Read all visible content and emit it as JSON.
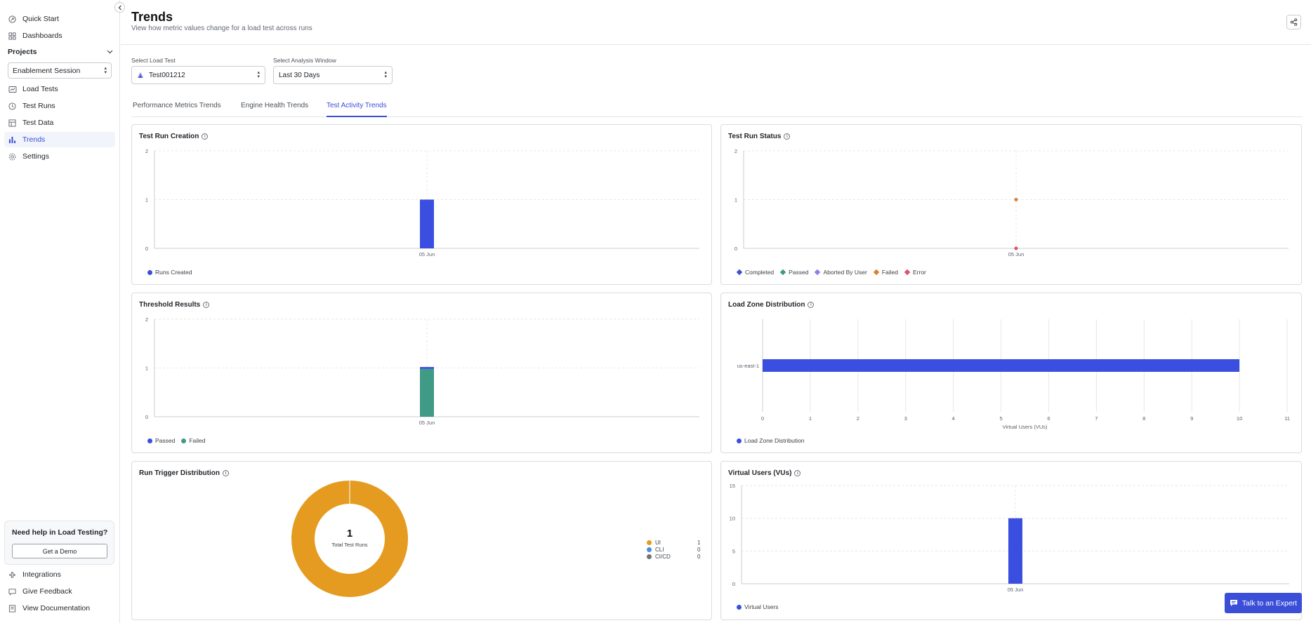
{
  "sidebar": {
    "top_items": [
      {
        "label": "Quick Start",
        "icon": "rocket-icon"
      },
      {
        "label": "Dashboards",
        "icon": "dashboard-icon"
      }
    ],
    "projects_label": "Projects",
    "project_select": "Enablement Session",
    "project_items": [
      {
        "label": "Load Tests",
        "icon": "load-tests-icon"
      },
      {
        "label": "Test Runs",
        "icon": "test-runs-icon"
      },
      {
        "label": "Test Data",
        "icon": "test-data-icon"
      },
      {
        "label": "Trends",
        "icon": "trends-icon",
        "active": true
      },
      {
        "label": "Settings",
        "icon": "gear-icon"
      }
    ],
    "help": {
      "title": "Need help in Load Testing?",
      "button": "Get a Demo"
    },
    "bottom_items": [
      {
        "label": "Integrations",
        "icon": "integrations-icon"
      },
      {
        "label": "Give Feedback",
        "icon": "feedback-icon"
      },
      {
        "label": "View Documentation",
        "icon": "documentation-icon"
      }
    ]
  },
  "header": {
    "title": "Trends",
    "subtitle": "View how metric values change for a load test across runs"
  },
  "filters": {
    "load_test_label": "Select Load Test",
    "load_test_value": "Test001212",
    "window_label": "Select Analysis Window",
    "window_value": "Last 30 Days"
  },
  "tabs": [
    {
      "label": "Performance Metrics Trends"
    },
    {
      "label": "Engine Health Trends"
    },
    {
      "label": "Test Activity Trends",
      "active": true
    }
  ],
  "colors": {
    "accent": "#3b4ed8",
    "bar_blue": "#3a4fe0",
    "passed_teal": "#3f9a86",
    "failed_orange": "#d9822b",
    "error_red": "#d9536b",
    "aborted_purple": "#8a80e6",
    "ui_gold": "#e49b20",
    "cli_blue": "#4a8fe0",
    "cicd_gray": "#6e737a"
  },
  "expert_button": "Talk to an Expert",
  "chart_data": [
    {
      "id": "test-run-creation",
      "type": "bar",
      "title": "Test Run Creation",
      "categories": [
        "05 Jun"
      ],
      "series": [
        {
          "name": "Runs Created",
          "values": [
            1
          ]
        }
      ],
      "yticks": [
        "0",
        "1",
        "2"
      ],
      "ylim": [
        0,
        2
      ],
      "legend": [
        "Runs Created"
      ]
    },
    {
      "id": "test-run-status",
      "type": "scatter",
      "title": "Test Run Status",
      "categories": [
        "05 Jun"
      ],
      "series": [
        {
          "name": "Completed",
          "values": [
            0
          ]
        },
        {
          "name": "Passed",
          "values": [
            0
          ]
        },
        {
          "name": "Aborted By User",
          "values": [
            0
          ]
        },
        {
          "name": "Failed",
          "values": [
            1
          ]
        },
        {
          "name": "Error",
          "values": [
            0
          ]
        }
      ],
      "yticks": [
        "0",
        "1",
        "2"
      ],
      "ylim": [
        0,
        2
      ],
      "legend": [
        "Completed",
        "Passed",
        "Aborted By User",
        "Failed",
        "Error"
      ]
    },
    {
      "id": "threshold-results",
      "type": "bar",
      "title": "Threshold Results",
      "categories": [
        "05 Jun"
      ],
      "series": [
        {
          "name": "Passed",
          "values": [
            0.04
          ]
        },
        {
          "name": "Failed",
          "values": [
            0.98
          ]
        }
      ],
      "yticks": [
        "0",
        "1",
        "2"
      ],
      "ylim": [
        0,
        2
      ],
      "legend": [
        "Passed",
        "Failed"
      ]
    },
    {
      "id": "load-zone-distribution",
      "type": "bar",
      "orientation": "horizontal",
      "title": "Load Zone Distribution",
      "categories": [
        "us-east-1"
      ],
      "series": [
        {
          "name": "Load Zone Distribution",
          "values": [
            10
          ]
        }
      ],
      "xlabel": "Virtual Users (VUs)",
      "xticks": [
        "0",
        "1",
        "2",
        "3",
        "4",
        "5",
        "6",
        "7",
        "8",
        "9",
        "10",
        "11"
      ],
      "xlim": [
        0,
        11
      ],
      "legend": [
        "Load Zone Distribution"
      ]
    },
    {
      "id": "run-trigger-distribution",
      "type": "pie",
      "title": "Run Trigger Distribution",
      "center_value": "1",
      "center_label": "Total Test Runs",
      "slices": [
        {
          "name": "UI",
          "value": 1,
          "display": "1"
        },
        {
          "name": "CLI",
          "value": 0,
          "display": "0"
        },
        {
          "name": "CI/CD",
          "value": 0,
          "display": "0"
        }
      ]
    },
    {
      "id": "virtual-users",
      "type": "bar",
      "title": "Virtual Users (VUs)",
      "categories": [
        "05 Jun"
      ],
      "series": [
        {
          "name": "Virtual Users",
          "values": [
            10
          ]
        }
      ],
      "yticks": [
        "0",
        "5",
        "10",
        "15"
      ],
      "ylim": [
        0,
        15
      ],
      "legend": [
        "Virtual Users"
      ]
    }
  ]
}
